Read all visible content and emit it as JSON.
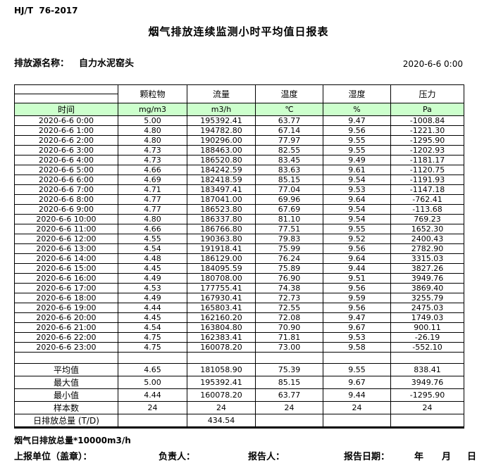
{
  "meta": {
    "standard": "HJ/T  76-2017",
    "title": "烟气排放连续监测小时平均值日报表",
    "source_label": "排放源名称：",
    "source_name": "自力水泥窑头",
    "datetime": "2020-6-6 0:00"
  },
  "table": {
    "time_header": "时间",
    "columns": [
      "颗粒物",
      "流量",
      "温度",
      "湿度",
      "压力"
    ],
    "units": [
      "mg/m3",
      "m3/h",
      "℃",
      "%",
      "Pa"
    ],
    "header_bg": "#ccffcc",
    "rows": [
      {
        "time": "2020-6-6 0:00",
        "values": [
          "5.00",
          "195392.41",
          "63.77",
          "9.47",
          "-1008.84"
        ]
      },
      {
        "time": "2020-6-6 1:00",
        "values": [
          "4.80",
          "194782.80",
          "67.14",
          "9.56",
          "-1221.30"
        ]
      },
      {
        "time": "2020-6-6 2:00",
        "values": [
          "4.80",
          "190296.00",
          "77.97",
          "9.55",
          "-1295.90"
        ]
      },
      {
        "time": "2020-6-6 3:00",
        "values": [
          "4.73",
          "188463.00",
          "82.55",
          "9.55",
          "-1202.93"
        ]
      },
      {
        "time": "2020-6-6 4:00",
        "values": [
          "4.73",
          "186520.80",
          "83.45",
          "9.49",
          "-1181.17"
        ]
      },
      {
        "time": "2020-6-6 5:00",
        "values": [
          "4.66",
          "184242.59",
          "83.63",
          "9.61",
          "-1120.75"
        ]
      },
      {
        "time": "2020-6-6 6:00",
        "values": [
          "4.69",
          "182418.59",
          "85.15",
          "9.54",
          "-1191.93"
        ]
      },
      {
        "time": "2020-6-6 7:00",
        "values": [
          "4.71",
          "183497.41",
          "77.04",
          "9.53",
          "-1147.18"
        ]
      },
      {
        "time": "2020-6-6 8:00",
        "values": [
          "4.77",
          "187041.00",
          "69.96",
          "9.64",
          "-762.41"
        ]
      },
      {
        "time": "2020-6-6 9:00",
        "values": [
          "4.77",
          "186523.80",
          "67.69",
          "9.54",
          "-113.68"
        ]
      },
      {
        "time": "2020-6-6 10:00",
        "values": [
          "4.80",
          "186337.80",
          "81.10",
          "9.54",
          "769.23"
        ]
      },
      {
        "time": "2020-6-6 11:00",
        "values": [
          "4.66",
          "186766.80",
          "77.51",
          "9.55",
          "1652.30"
        ]
      },
      {
        "time": "2020-6-6 12:00",
        "values": [
          "4.55",
          "190363.80",
          "79.83",
          "9.52",
          "2400.43"
        ]
      },
      {
        "time": "2020-6-6 13:00",
        "values": [
          "4.54",
          "191918.41",
          "75.99",
          "9.56",
          "2782.90"
        ]
      },
      {
        "time": "2020-6-6 14:00",
        "values": [
          "4.48",
          "186129.00",
          "76.24",
          "9.64",
          "3315.03"
        ]
      },
      {
        "time": "2020-6-6 15:00",
        "values": [
          "4.45",
          "184095.59",
          "75.89",
          "9.44",
          "3827.26"
        ]
      },
      {
        "time": "2020-6-6 16:00",
        "values": [
          "4.49",
          "180708.00",
          "76.90",
          "9.51",
          "3949.76"
        ]
      },
      {
        "time": "2020-6-6 17:00",
        "values": [
          "4.53",
          "177755.41",
          "74.38",
          "9.56",
          "3869.40"
        ]
      },
      {
        "time": "2020-6-6 18:00",
        "values": [
          "4.49",
          "167930.41",
          "72.73",
          "9.59",
          "3255.79"
        ]
      },
      {
        "time": "2020-6-6 19:00",
        "values": [
          "4.44",
          "165803.41",
          "72.55",
          "9.56",
          "2475.03"
        ]
      },
      {
        "time": "2020-6-6 20:00",
        "values": [
          "4.45",
          "162160.20",
          "72.08",
          "9.47",
          "1749.03"
        ]
      },
      {
        "time": "2020-6-6 21:00",
        "values": [
          "4.54",
          "163804.80",
          "70.90",
          "9.67",
          "900.11"
        ]
      },
      {
        "time": "2020-6-6 22:00",
        "values": [
          "4.75",
          "162383.41",
          "71.81",
          "9.53",
          "-26.19"
        ]
      },
      {
        "time": "2020-6-6 23:00",
        "values": [
          "4.75",
          "160078.20",
          "73.00",
          "9.58",
          "-552.10"
        ]
      }
    ],
    "summary": [
      {
        "label": "平均值",
        "values": [
          "4.65",
          "181058.90",
          "75.39",
          "9.55",
          "838.41"
        ]
      },
      {
        "label": "最大值",
        "values": [
          "5.00",
          "195392.41",
          "85.15",
          "9.67",
          "3949.76"
        ]
      },
      {
        "label": "最小值",
        "values": [
          "4.44",
          "160078.20",
          "63.77",
          "9.44",
          "-1295.90"
        ]
      },
      {
        "label": "样本数",
        "values": [
          "24",
          "24",
          "24",
          "24",
          "24"
        ]
      },
      {
        "label": "日排放总量 (T/D)",
        "values": [
          "",
          "434.54",
          "",
          "",
          ""
        ]
      }
    ]
  },
  "footer": {
    "note": "烟气日排放总量*10000m3/h",
    "report_unit": "上报单位（盖章）：",
    "responsible": "负责人：",
    "reporter": "报告人：",
    "report_date": "报告日期：",
    "year": "年",
    "month": "月",
    "day": "日"
  }
}
